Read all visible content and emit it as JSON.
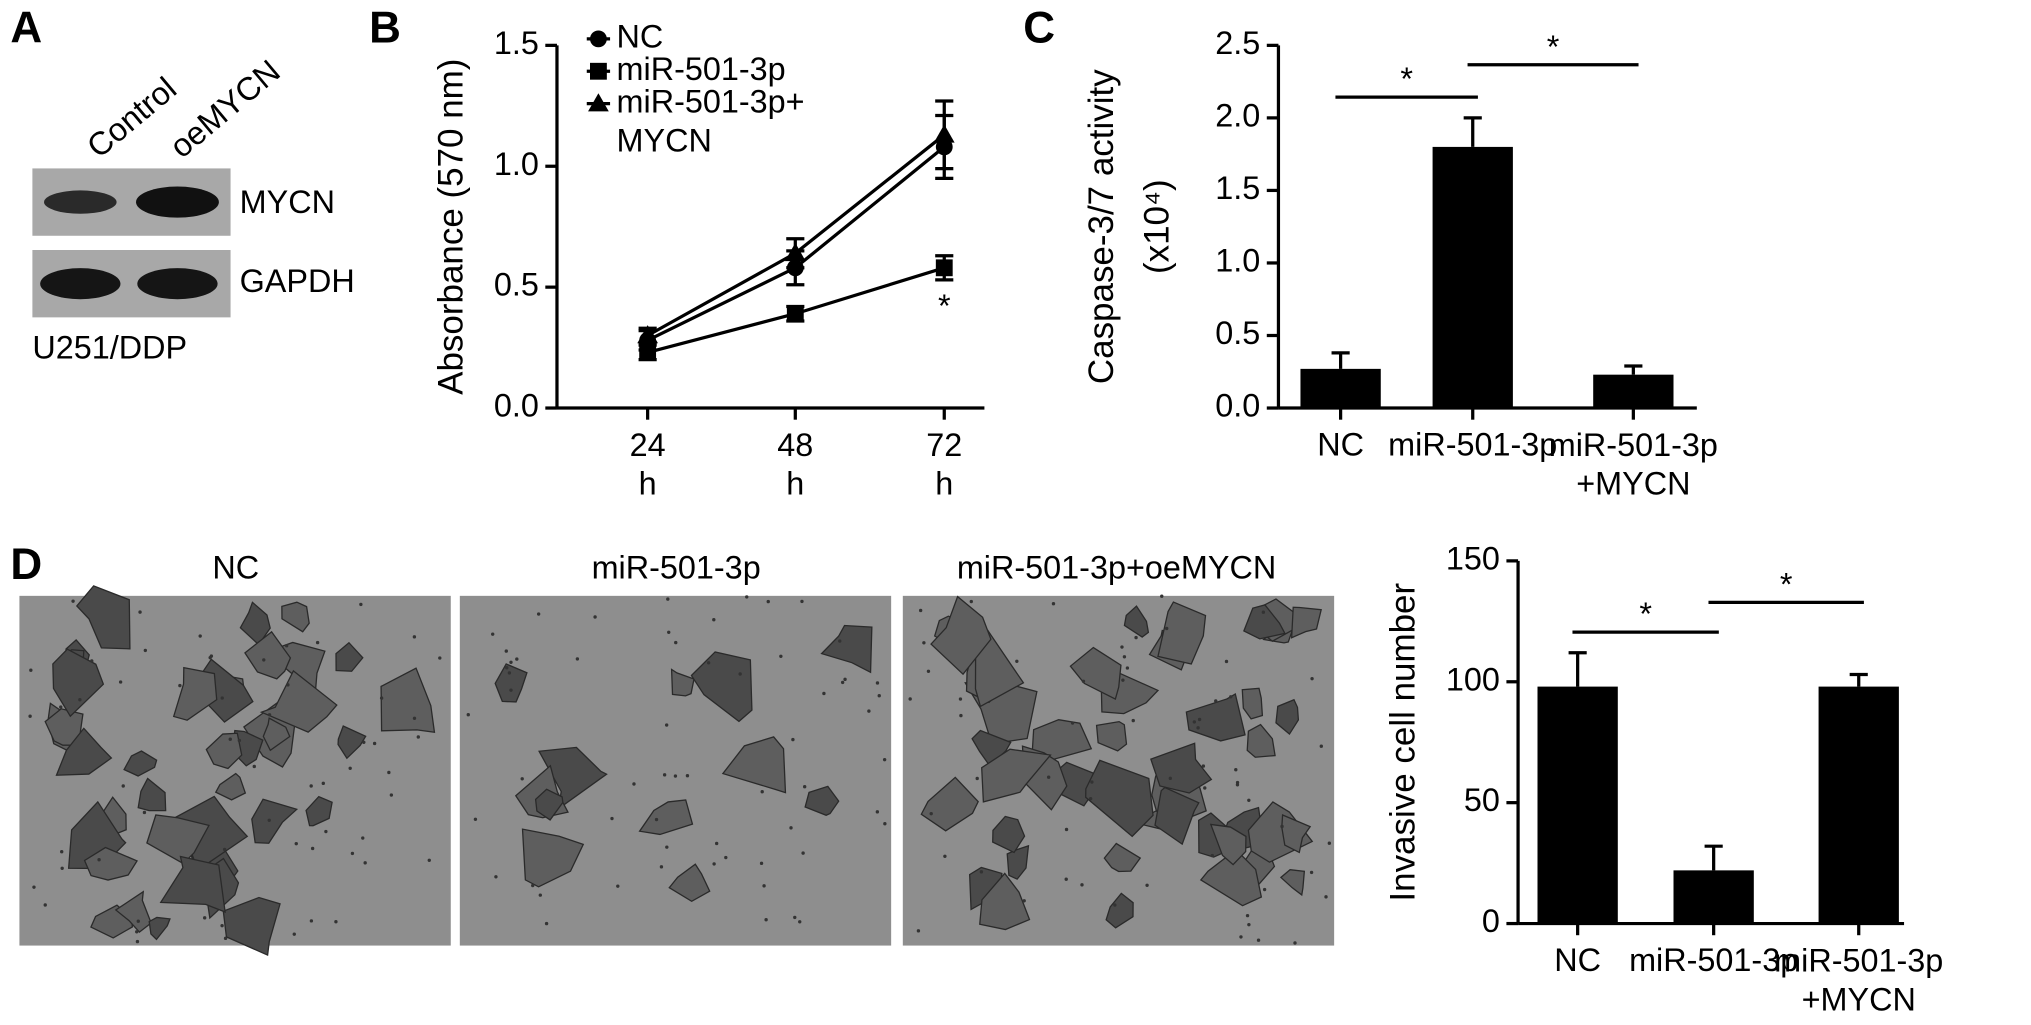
{
  "blot": {
    "panel_label": "A",
    "lanes": [
      "Control",
      "oeMYCN"
    ],
    "rows": [
      "MYCN",
      "GAPDH"
    ],
    "cell_line": "U251/DDP"
  },
  "micrographs": {
    "panel_label": "D",
    "titles": [
      "NC",
      "miR-501-3p",
      "miR-501-3p+oeMYCN"
    ]
  },
  "chart_data": [
    {
      "type": "line",
      "panel_label": "B",
      "ylabel": "Absorbance (570 nm)",
      "categories": [
        "24 h",
        "48 h",
        "72 h"
      ],
      "ylim": [
        0,
        1.5
      ],
      "yticks": [
        {
          "value": 0,
          "label": "0.0"
        },
        0.5,
        {
          "value": 1,
          "label": "1.0"
        },
        1.5
      ],
      "series": [
        {
          "name": "NC",
          "color": "#000000",
          "marker": "circle",
          "values": [
            0.28,
            0.58,
            1.08
          ],
          "errors": [
            0.04,
            0.07,
            0.13
          ]
        },
        {
          "name": "miR-501-3p",
          "color": "#000000",
          "marker": "square",
          "values": [
            0.23,
            0.39,
            0.58
          ],
          "errors": [
            0.03,
            0.03,
            0.05
          ]
        },
        {
          "name": "miR-501-3p+ MYCN",
          "color": "#000000",
          "marker": "triangle",
          "values": [
            0.3,
            0.64,
            1.13
          ],
          "errors": [
            0.03,
            0.06,
            0.14
          ]
        }
      ],
      "annotations": [
        {
          "text": "*",
          "series": "miR-501-3p",
          "category": "72 h"
        }
      ]
    },
    {
      "type": "bar",
      "panel_label": "C",
      "ylabel": [
        "Caspase-3/7 activity",
        "(x10⁴)"
      ],
      "categories": [
        "NC",
        "miR-501-3p",
        "miR-501-3p +MYCN"
      ],
      "color": "#000000",
      "values": [
        0.27,
        1.8,
        0.23
      ],
      "errors": [
        0.11,
        0.2,
        0.06
      ],
      "ylim": [
        0,
        2.5
      ],
      "yticks": [
        {
          "value": 0,
          "label": "0.0"
        },
        0.5,
        {
          "value": 1,
          "label": "1.0"
        },
        1.5,
        {
          "value": 2,
          "label": "2.0"
        },
        2.5
      ],
      "comparisons": [
        {
          "pair": [
            "NC",
            "miR-501-3p"
          ],
          "label": "*"
        },
        {
          "pair": [
            "miR-501-3p",
            "miR-501-3p +MYCN"
          ],
          "label": "*"
        }
      ]
    },
    {
      "type": "bar",
      "ylabel": "Invasive cell number",
      "categories": [
        "NC",
        "miR-501-3p",
        "miR-501-3p +MYCN"
      ],
      "color": "#000000",
      "values": [
        98,
        22,
        98
      ],
      "errors": [
        14,
        10,
        5
      ],
      "ylim": [
        0,
        150
      ],
      "yticks": [
        0,
        50,
        100,
        150
      ],
      "comparisons": [
        {
          "pair": [
            "NC",
            "miR-501-3p"
          ],
          "label": "*"
        },
        {
          "pair": [
            "miR-501-3p",
            "miR-501-3p +MYCN"
          ],
          "label": "*"
        }
      ]
    }
  ]
}
